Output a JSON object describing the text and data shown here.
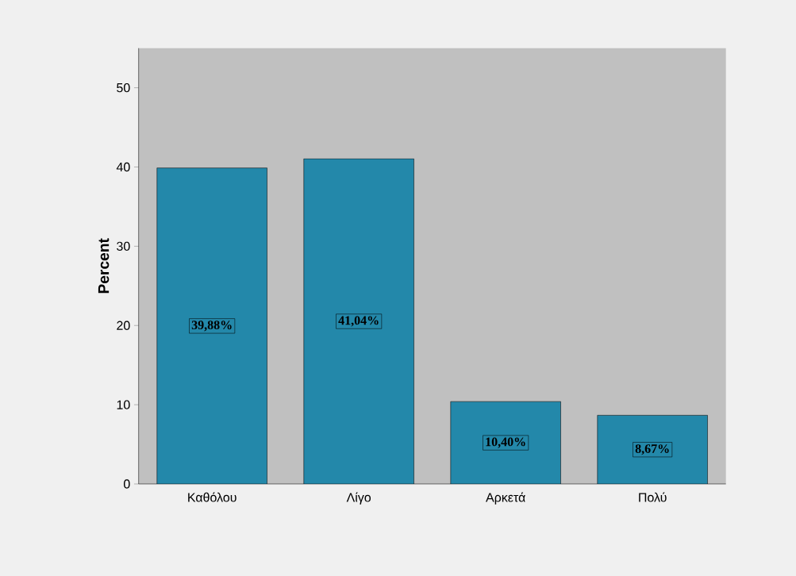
{
  "chart_data": {
    "type": "bar",
    "ylabel": "Percent",
    "categories": [
      "Καθόλου",
      "Λίγο",
      "Αρκετά",
      "Πολύ"
    ],
    "values": [
      39.88,
      41.04,
      10.4,
      8.67
    ],
    "value_labels": [
      "39,88%",
      "41,04%",
      "10,40%",
      "8,67%"
    ],
    "color": "#2388aa",
    "ylim": [
      0,
      55
    ],
    "yticks": [
      0,
      10,
      20,
      30,
      40,
      50
    ],
    "grid": false
  }
}
